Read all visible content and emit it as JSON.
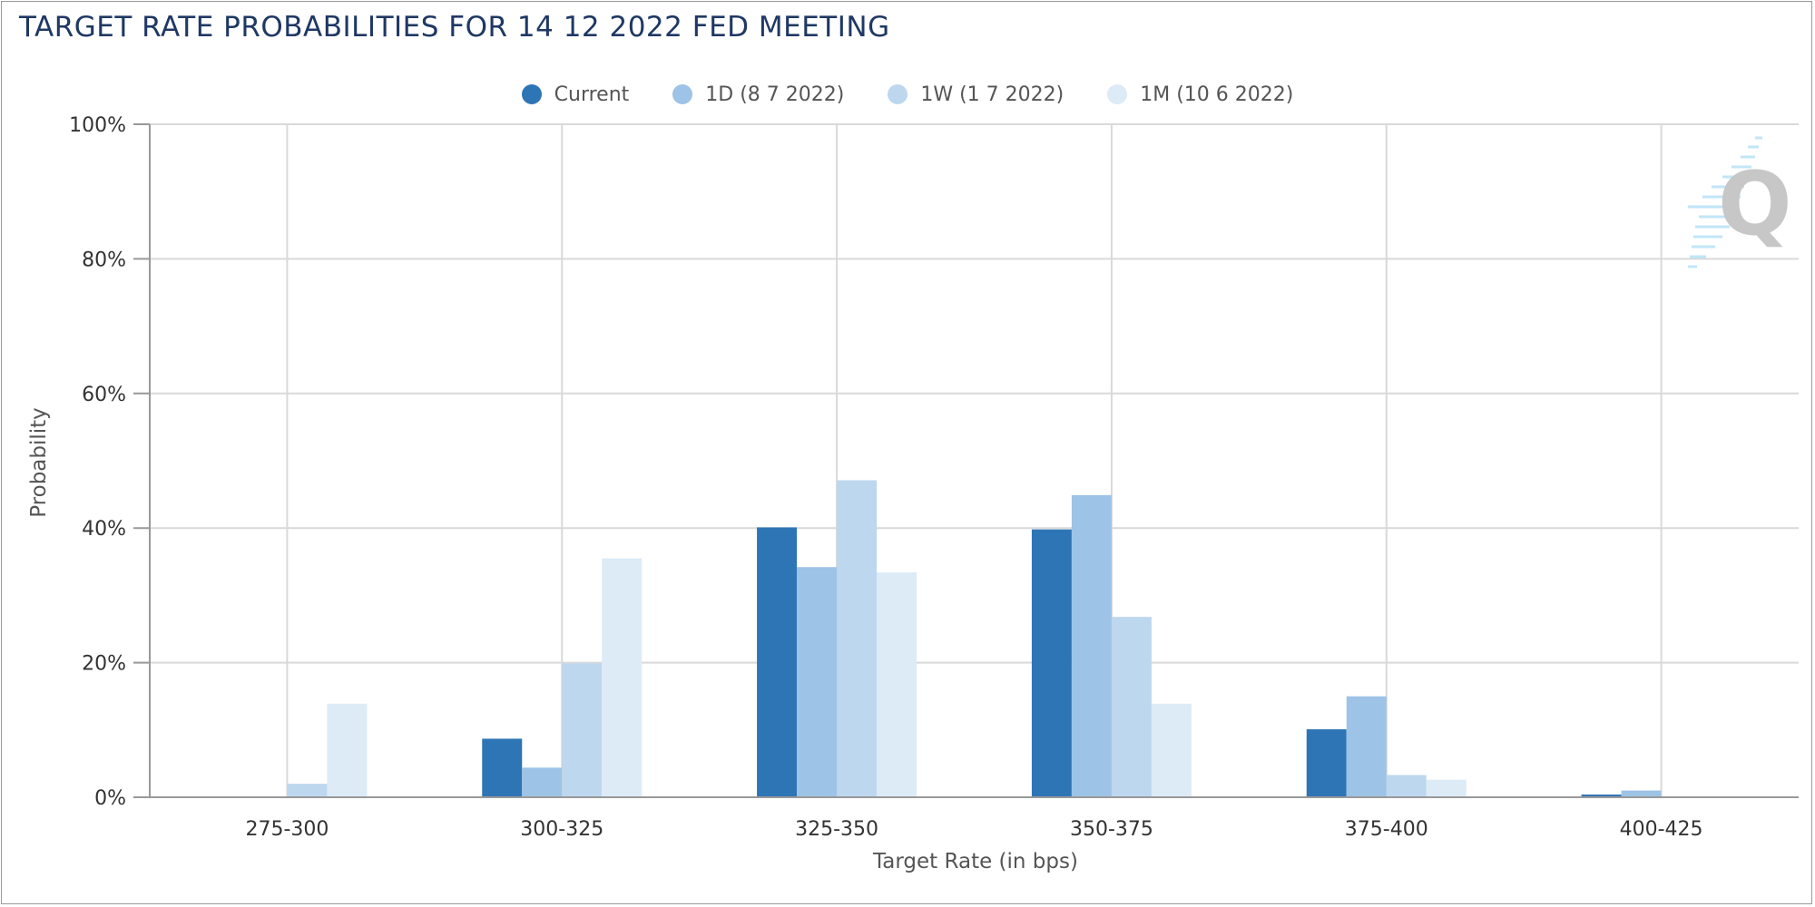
{
  "chart_data": {
    "type": "bar",
    "title": "TARGET RATE PROBABILITIES FOR 14 12 2022 FED MEETING",
    "xlabel": "Target Rate (in bps)",
    "ylabel": "Probability",
    "ylim": [
      0,
      100
    ],
    "yticks": [
      "0%",
      "20%",
      "40%",
      "60%",
      "80%",
      "100%"
    ],
    "categories": [
      "275-300",
      "300-325",
      "325-350",
      "350-375",
      "375-400",
      "400-425"
    ],
    "legend_position": "top-center",
    "grid": true,
    "series": [
      {
        "name": "Current",
        "color": "#2e75b6",
        "values": [
          0,
          8.7,
          40.1,
          39.8,
          10.1,
          0.4
        ]
      },
      {
        "name": "1D (8 7 2022)",
        "color": "#9dc3e6",
        "values": [
          0,
          4.4,
          34.2,
          44.9,
          15.0,
          1.0
        ]
      },
      {
        "name": "1W (1 7 2022)",
        "color": "#bdd7ee",
        "values": [
          2.0,
          19.9,
          47.1,
          26.8,
          3.3,
          0
        ]
      },
      {
        "name": "1M (10 6 2022)",
        "color": "#ddebf7",
        "values": [
          13.9,
          35.5,
          33.4,
          13.9,
          2.6,
          0
        ]
      }
    ]
  }
}
